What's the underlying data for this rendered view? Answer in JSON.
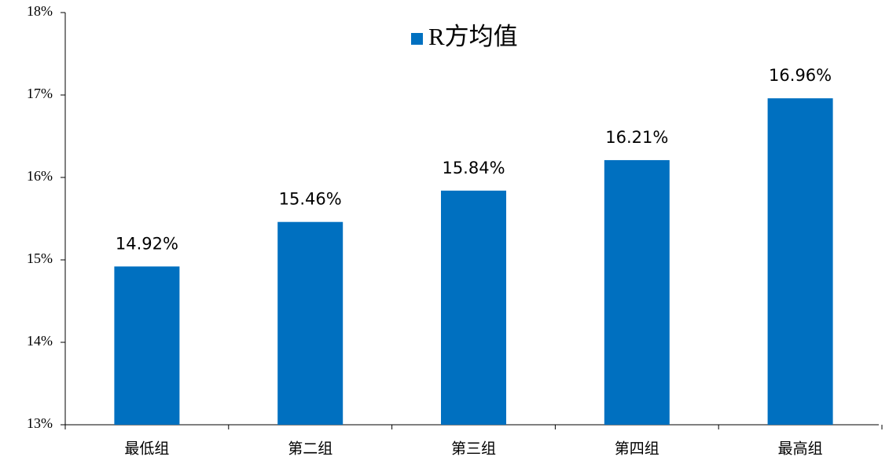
{
  "chart_data": {
    "type": "bar",
    "categories": [
      "最低组",
      "第二组",
      "第三组",
      "第四组",
      "最高组"
    ],
    "series": [
      {
        "name": "R方均值",
        "color": "#0070c0",
        "values": [
          14.92,
          15.46,
          15.84,
          16.21,
          16.96
        ],
        "value_labels": [
          "14.92%",
          "15.46%",
          "15.84%",
          "16.21%",
          "16.96%"
        ]
      }
    ],
    "ylim": [
      13,
      18
    ],
    "yticks": [
      {
        "value": 13,
        "label": "13%"
      },
      {
        "value": 14,
        "label": "14%"
      },
      {
        "value": 15,
        "label": "15%"
      },
      {
        "value": 16,
        "label": "16%"
      },
      {
        "value": 17,
        "label": "17%"
      },
      {
        "value": 18,
        "label": "18%"
      }
    ],
    "grid": false,
    "legend": "top"
  }
}
